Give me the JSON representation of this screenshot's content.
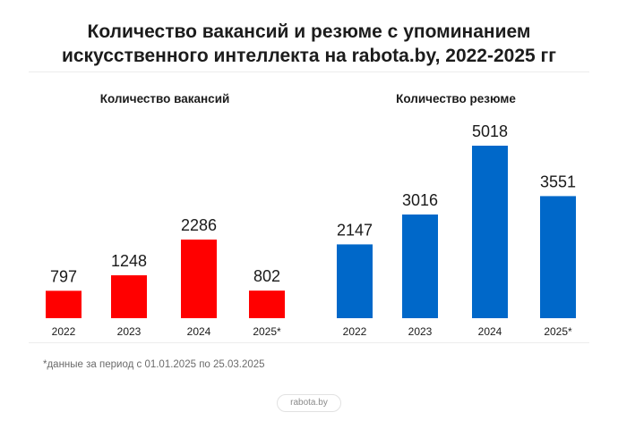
{
  "title_line1": "Количество вакансий и резюме с упоминанием",
  "title_line2": "искусственного интеллекта на rabota.by, 2022-2025 гг",
  "footnote": "*данные за период с 01.01.2025 по 25.03.2025",
  "brand": "rabota.by",
  "chart_data": [
    {
      "type": "bar",
      "title": "Количество вакансий",
      "categories": [
        "2022",
        "2023",
        "2024",
        "2025*"
      ],
      "values": [
        797,
        1248,
        2286,
        802
      ],
      "color": "#ff0000"
    },
    {
      "type": "bar",
      "title": "Количество резюме",
      "categories": [
        "2022",
        "2023",
        "2024",
        "2025*"
      ],
      "values": [
        2147,
        3016,
        5018,
        3551
      ],
      "color": "#0068c9"
    }
  ]
}
